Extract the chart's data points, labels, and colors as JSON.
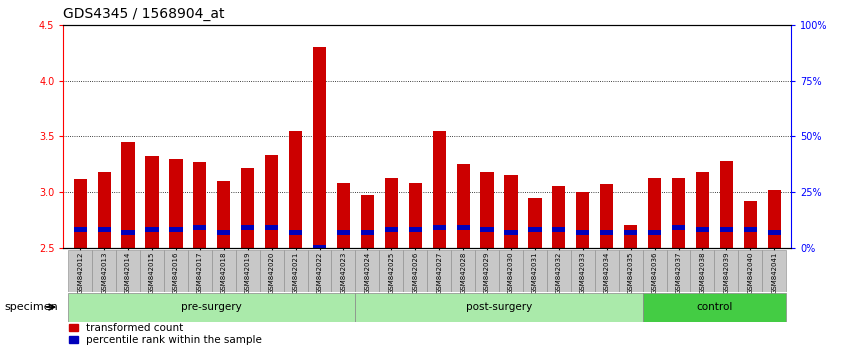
{
  "title": "GDS4345 / 1568904_at",
  "categories": [
    "GSM842012",
    "GSM842013",
    "GSM842014",
    "GSM842015",
    "GSM842016",
    "GSM842017",
    "GSM842018",
    "GSM842019",
    "GSM842020",
    "GSM842021",
    "GSM842022",
    "GSM842023",
    "GSM842024",
    "GSM842025",
    "GSM842026",
    "GSM842027",
    "GSM842028",
    "GSM842029",
    "GSM842030",
    "GSM842031",
    "GSM842032",
    "GSM842033",
    "GSM842034",
    "GSM842035",
    "GSM842036",
    "GSM842037",
    "GSM842038",
    "GSM842039",
    "GSM842040",
    "GSM842041"
  ],
  "red_values": [
    3.12,
    3.18,
    3.45,
    3.32,
    3.3,
    3.27,
    3.1,
    3.22,
    3.33,
    3.55,
    4.3,
    3.08,
    2.97,
    3.13,
    3.08,
    3.55,
    3.25,
    3.18,
    3.15,
    2.95,
    3.05,
    3.0,
    3.07,
    2.7,
    3.13,
    3.13,
    3.18,
    3.28,
    2.92,
    3.02
  ],
  "blue_pct": [
    8,
    8,
    7,
    8,
    8,
    9,
    7,
    9,
    9,
    7,
    0,
    7,
    7,
    8,
    8,
    9,
    9,
    8,
    7,
    8,
    8,
    7,
    7,
    7,
    7,
    9,
    8,
    8,
    8,
    7
  ],
  "bar_bottom": 2.5,
  "ylim": [
    2.5,
    4.5
  ],
  "yticks_left": [
    2.5,
    3.0,
    3.5,
    4.0,
    4.5
  ],
  "yticks_right_pct": [
    0,
    25,
    50,
    75,
    100
  ],
  "ytick_right_labels": [
    "0%",
    "25%",
    "50%",
    "75%",
    "100%"
  ],
  "gridlines": [
    3.0,
    3.5,
    4.0
  ],
  "groups": [
    {
      "label": "pre-surgery",
      "start": 0,
      "end": 12
    },
    {
      "label": "post-surgery",
      "start": 12,
      "end": 24
    },
    {
      "label": "control",
      "start": 24,
      "end": 30
    }
  ],
  "group_colors": [
    "#aaeaaa",
    "#aaeaaa",
    "#44cc44"
  ],
  "specimen_label": "specimen",
  "legend_red_label": "transformed count",
  "legend_blue_label": "percentile rank within the sample",
  "red_color": "#cc0000",
  "blue_color": "#0000bb",
  "title_fontsize": 10,
  "tick_fontsize": 7
}
